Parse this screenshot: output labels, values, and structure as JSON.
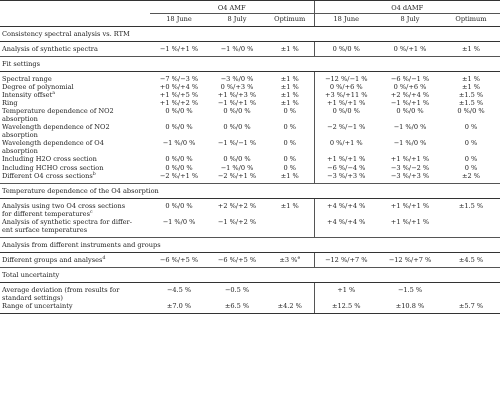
{
  "header": {
    "group_amf": "O4 AMF",
    "group_damf": "O4 dAMF",
    "columns": [
      "18 June",
      "8 July",
      "Optimum",
      "18 June",
      "8 July",
      "Optimum"
    ]
  },
  "sections": [
    {
      "title": "Consistency spectral analysis vs. RTM",
      "rows": [
        {
          "label": "Analysis of synthetic spectra",
          "label2": "",
          "values": [
            "−1 %/+1 %",
            "−1 %/0 %",
            "±1 %",
            "0 %/0 %",
            "0 %/+1 %",
            "±1 %"
          ]
        }
      ]
    },
    {
      "title": "Fit settings",
      "rows": [
        {
          "label": "Spectral range",
          "label2": "",
          "values": [
            "−7 %/−3 %",
            "−3 %/0 %",
            "±1 %",
            "−12 %/−1 %",
            "−6 %/−1 %",
            "±1 %"
          ]
        },
        {
          "label": "Degree of polynomial",
          "label2": "",
          "values": [
            "+0 %/+4 %",
            "0 %/+3 %",
            "±1 %",
            "0 %/+6 %",
            "0 %/+6 %",
            "±1 %"
          ]
        },
        {
          "label": "Intensity offset",
          "sup": "a",
          "label2": "",
          "values": [
            "+1 %/+5 %",
            "+1 %/+3 %",
            "±1 %",
            "+3 %/+11 %",
            "+2 %/+4 %",
            "±1.5 %"
          ]
        },
        {
          "label": "Ring",
          "label2": "",
          "values": [
            "+1 %/+2 %",
            "−1 %/+1 %",
            "±1 %",
            "+1 %/+1 %",
            "−1 %/+1 %",
            "±1.5 %"
          ]
        },
        {
          "label": "Temperature dependence of NO2",
          "label2": "absorption",
          "values": [
            "0 %/0 %",
            "0 %/0 %",
            "0 %",
            "0 %/0 %",
            "0 %/0 %",
            "0 %/0 %"
          ]
        },
        {
          "label": "Wavelength dependence of NO2",
          "label2": "absorption",
          "values": [
            "0 %/0 %",
            "0 %/0 %",
            "0 %",
            "−2 %/−1 %",
            "−1 %/0 %",
            "0 %"
          ]
        },
        {
          "label": "Wavelength dependence of O4",
          "label2": "absorption",
          "values": [
            "−1 %/0 %",
            "−1 %/−1 %",
            "0 %",
            "0 %/+1 %",
            "−1 %/0 %",
            "0 %"
          ]
        },
        {
          "label": "Including H2O cross section",
          "label2": "",
          "values": [
            "0 %/0 %",
            "0 %/0 %",
            "0 %",
            "+1 %/+1 %",
            "+1 %/+1 %",
            "0 %"
          ]
        },
        {
          "label": "Including HCHO cross section",
          "label2": "",
          "values": [
            "0 %/0 %",
            "−1 %/0 %",
            "0 %",
            "−6 %/−4 %",
            "−3 %/−2 %",
            "0 %"
          ]
        },
        {
          "label": "Different O4 cross sections",
          "sup": "b",
          "label2": "",
          "values": [
            "−2 %/+1 %",
            "−2 %/+1 %",
            "±1 %",
            "−3 %/+3 %",
            "−3 %/+3 %",
            "±2 %"
          ]
        }
      ]
    },
    {
      "title": "Temperature dependence of the O4 absorption",
      "rows": [
        {
          "label": "Analysis using two O4 cross sections",
          "label2": "for different temperatures",
          "sup2": "c",
          "values": [
            "0 %/0 %",
            "+2 %/+2 %",
            "±1 %",
            "+4 %/+4 %",
            "+1 %/+1 %",
            "±1.5 %"
          ]
        },
        {
          "label": "Analysis of synthetic spectra for differ-",
          "label2": "ent surface temperatures",
          "values": [
            "−1 %/0 %",
            "−1 %/+2 %",
            "",
            "+4 %/+4 %",
            "+1 %/+1 %",
            ""
          ]
        }
      ]
    },
    {
      "title": "Analysis from different instruments and groups",
      "rows": [
        {
          "label": "Different groups and analyses",
          "sup": "d",
          "label2": "",
          "values": [
            "−6 %/+5 %",
            "−6 %/+5 %",
            "±3 %",
            "−12 %/+7 %",
            "−12 %/+7 %",
            "±4.5 %"
          ],
          "optimum_sup": "e"
        }
      ]
    },
    {
      "title": "Total uncertainty",
      "rows": [
        {
          "label": "Average deviation (from results for",
          "label2": "standard settings)",
          "values": [
            "−4.5 %",
            "−0.5 %",
            "",
            "+1 %",
            "−1.5 %",
            ""
          ]
        },
        {
          "label": "Range of uncertainty",
          "label2": "",
          "values": [
            "±7.0 %",
            "±6.5 %",
            "±4.2 %",
            "±12.5 %",
            "±10.8 %",
            "±5.7 %"
          ]
        }
      ]
    }
  ]
}
